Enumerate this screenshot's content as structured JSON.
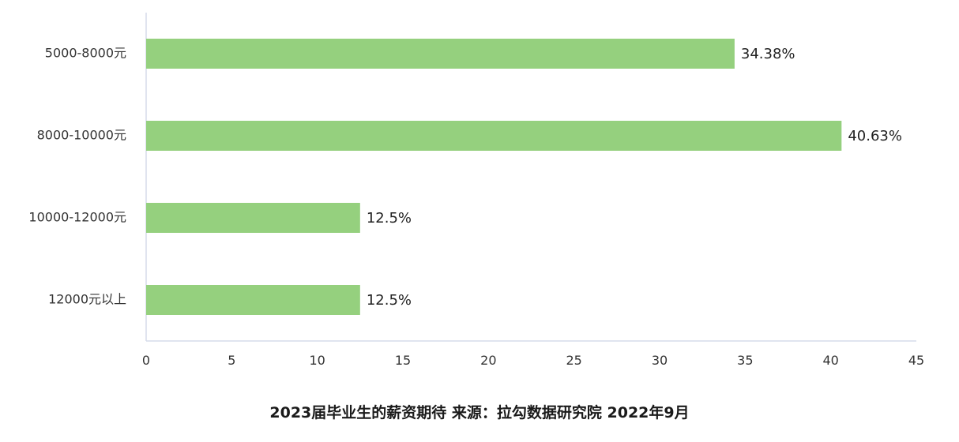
{
  "chart_data": {
    "type": "bar",
    "orientation": "horizontal",
    "categories": [
      "5000-8000元",
      "8000-10000元",
      "10000-12000元",
      "12000元以上"
    ],
    "values": [
      34.38,
      40.63,
      12.5,
      12.5
    ],
    "value_labels": [
      "34.38%",
      "40.63%",
      "12.5%",
      "12.5%"
    ],
    "xlim": [
      0,
      45
    ],
    "xticks": [
      0,
      5,
      10,
      15,
      20,
      25,
      30,
      35,
      40,
      45
    ],
    "grid": false,
    "legend": "none",
    "bar_color": "#95d07e",
    "axis_color": "#d6dcea"
  },
  "caption": "2023届毕业生的薪资期待 来源：拉勾数据研究院 2022年9月"
}
